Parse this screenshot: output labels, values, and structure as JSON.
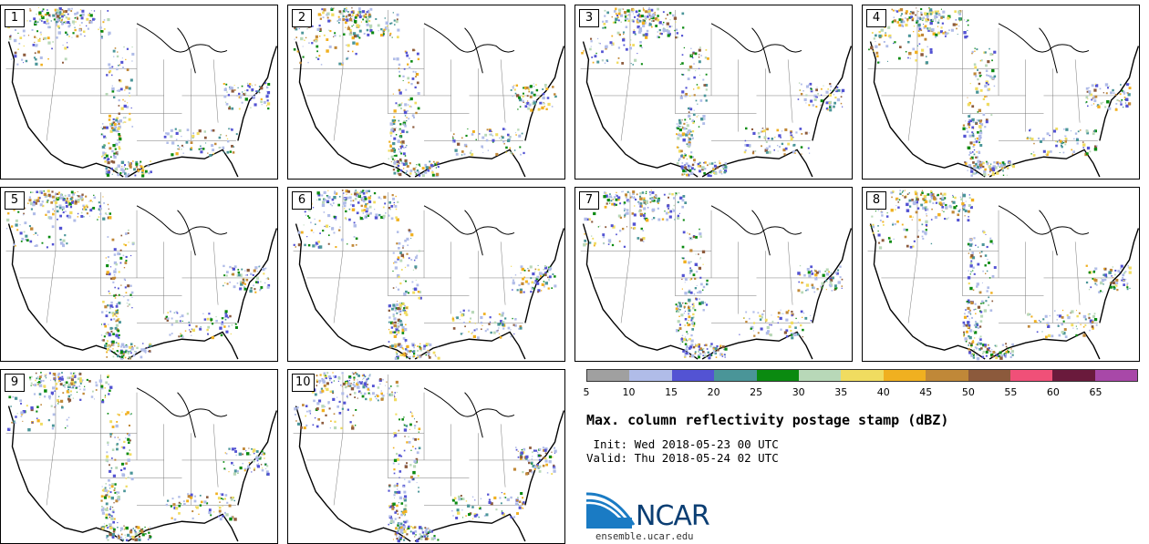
{
  "panels": [
    {
      "label": "1"
    },
    {
      "label": "2"
    },
    {
      "label": "3"
    },
    {
      "label": "4"
    },
    {
      "label": "5"
    },
    {
      "label": "6"
    },
    {
      "label": "7"
    },
    {
      "label": "8"
    },
    {
      "label": "9"
    },
    {
      "label": "10"
    }
  ],
  "colorbar": {
    "colors": [
      "#a0a0a0",
      "#b0bce8",
      "#5353d3",
      "#4a9598",
      "#0a8a10",
      "#b8d8b8",
      "#f0dc60",
      "#f0b020",
      "#c08838",
      "#8c5a3c",
      "#f05078",
      "#6a1a3c",
      "#a848a8"
    ],
    "ticks": [
      "5",
      "10",
      "15",
      "20",
      "25",
      "30",
      "35",
      "40",
      "45",
      "50",
      "55",
      "60",
      "65"
    ]
  },
  "title": "Max. column reflectivity postage stamp (dBZ)",
  "init": " Init: Wed 2018-05-23 00 UTC",
  "valid": "Valid: Thu 2018-05-24 02 UTC",
  "logo": {
    "text": "NCAR"
  },
  "site": "ensemble.ucar.edu"
}
